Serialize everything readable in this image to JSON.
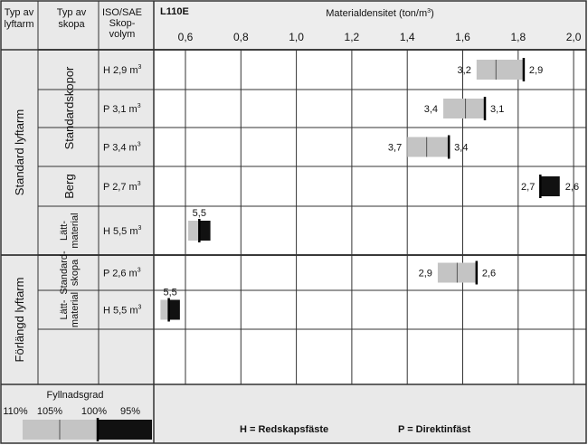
{
  "header": {
    "lift_arm_type": [
      "Typ av",
      "lyftarm"
    ],
    "bucket_type": [
      "Typ av",
      "skopa"
    ],
    "volume": [
      "ISO/SAE",
      "Skop-",
      "volym"
    ],
    "model": "L110E",
    "axis_title": "Materialdensitet (ton/m",
    "axis_title_sup": "3",
    "axis_title_end": ")"
  },
  "groups": [
    {
      "lift_arm": "Standard lyftarm",
      "bucket_groups": [
        {
          "label": [
            "Standardskopor"
          ],
          "rows": 3
        },
        {
          "label": [
            "Berg"
          ],
          "rows": 1
        },
        {
          "label": [
            "Lätt-",
            "material"
          ],
          "rows": 1
        }
      ]
    },
    {
      "lift_arm": "Förlängd lyftarm",
      "bucket_groups": [
        {
          "label": [
            "Standard-",
            "skopa"
          ],
          "rows": 1
        },
        {
          "label": [
            "Lätt-",
            "material"
          ],
          "rows": 1
        }
      ]
    }
  ],
  "legend": {
    "title": "Fyllnadsgrad",
    "percent_labels": [
      "110%",
      "105%",
      "100%",
      "95%"
    ],
    "h_note": "H = Redskapsfäste",
    "p_note": "P = Direktinfäst"
  },
  "chart_data": {
    "type": "bar",
    "title": "Materialdensitet (ton/m³)",
    "x_ticks": [
      "0,6",
      "0,8",
      "1,0",
      "1,2",
      "1,4",
      "1,6",
      "1,8",
      "2,0"
    ],
    "xlim": [
      0.5,
      2.02
    ],
    "rows": [
      {
        "volume_label": "H 2,9 m",
        "volume_sup": "3",
        "fill_110": 1.65,
        "fill_105": 1.72,
        "fill_100": 1.82,
        "fill_95": 1.82,
        "left_label": "3,2",
        "right_label": "2,9",
        "black_fill": false
      },
      {
        "volume_label": "P 3,1 m",
        "volume_sup": "3",
        "fill_110": 1.53,
        "fill_105": 1.61,
        "fill_100": 1.68,
        "fill_95": 1.68,
        "left_label": "3,4",
        "right_label": "3,1",
        "black_fill": false
      },
      {
        "volume_label": "P 3,4 m",
        "volume_sup": "3",
        "fill_110": 1.4,
        "fill_105": 1.47,
        "fill_100": 1.55,
        "fill_95": 1.55,
        "left_label": "3,7",
        "right_label": "3,4",
        "black_fill": false
      },
      {
        "volume_label": "P  2,7 m",
        "volume_sup": "3",
        "fill_110": 1.88,
        "fill_105": 1.88,
        "fill_100": 1.88,
        "fill_95": 1.95,
        "left_label": "2,7",
        "right_label": "2,6",
        "black_fill": true
      },
      {
        "volume_label": "H 5,5 m",
        "volume_sup": "3",
        "fill_110": 0.61,
        "fill_105": 0.61,
        "fill_100": 0.65,
        "fill_95": 0.69,
        "left_label": "5,5",
        "right_label": "",
        "black_fill": true
      },
      {
        "volume_label": "P 2,6 m",
        "volume_sup": "3",
        "fill_110": 1.51,
        "fill_105": 1.58,
        "fill_100": 1.65,
        "fill_95": 1.65,
        "left_label": "2,9",
        "right_label": "2,6",
        "black_fill": false
      },
      {
        "volume_label": "H 5,5 m",
        "volume_sup": "3",
        "fill_110": 0.51,
        "fill_105": 0.51,
        "fill_100": 0.54,
        "fill_95": 0.58,
        "left_label": "5,5",
        "right_label": "",
        "black_fill": true
      }
    ]
  }
}
